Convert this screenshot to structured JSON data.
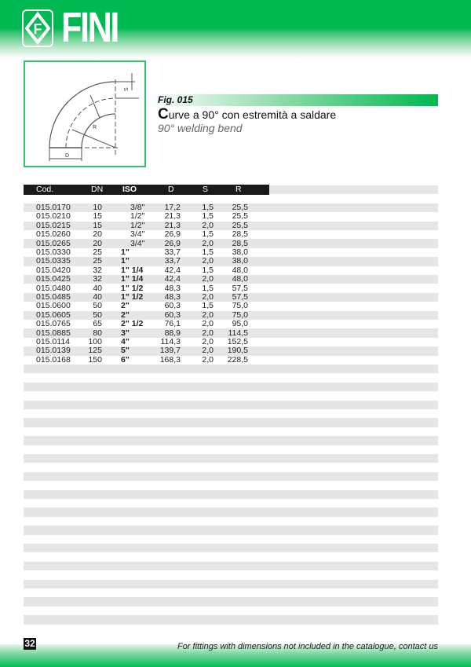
{
  "brand": {
    "name": "FINI",
    "color": "#00b850"
  },
  "figure": {
    "label": "Fig. 015",
    "title_cap": "C",
    "title_rest": "urve a 90° con estremità a saldare",
    "subtitle": "90° welding bend",
    "dim_labels": {
      "s": "S",
      "r": "R",
      "d": "D"
    }
  },
  "table": {
    "headers": [
      "Cod.",
      "DN",
      "ISO",
      "D",
      "S",
      "R"
    ],
    "rows": [
      {
        "cod": "015.0170",
        "dn": "10",
        "iso": "3/8\"",
        "frac": true,
        "d": "17,2",
        "s": "1,5",
        "r": "25,5"
      },
      {
        "cod": "015.0210",
        "dn": "15",
        "iso": "1/2\"",
        "frac": true,
        "d": "21,3",
        "s": "1,5",
        "r": "25,5"
      },
      {
        "cod": "015.0215",
        "dn": "15",
        "iso": "1/2\"",
        "frac": true,
        "d": "21,3",
        "s": "2,0",
        "r": "25,5"
      },
      {
        "cod": "015.0260",
        "dn": "20",
        "iso": "3/4\"",
        "frac": true,
        "d": "26,9",
        "s": "1,5",
        "r": "28,5"
      },
      {
        "cod": "015.0265",
        "dn": "20",
        "iso": "3/4\"",
        "frac": true,
        "d": "26,9",
        "s": "2,0",
        "r": "28,5"
      },
      {
        "cod": "015.0330",
        "dn": "25",
        "iso": "1\"",
        "frac": false,
        "d": "33,7",
        "s": "1,5",
        "r": "38,0"
      },
      {
        "cod": "015.0335",
        "dn": "25",
        "iso": "1\"",
        "frac": false,
        "d": "33,7",
        "s": "2,0",
        "r": "38,0"
      },
      {
        "cod": "015.0420",
        "dn": "32",
        "iso": "1\" 1/4",
        "frac": false,
        "d": "42,4",
        "s": "1,5",
        "r": "48,0"
      },
      {
        "cod": "015.0425",
        "dn": "32",
        "iso": "1\" 1/4",
        "frac": false,
        "d": "42,4",
        "s": "2,0",
        "r": "48,0"
      },
      {
        "cod": "015.0480",
        "dn": "40",
        "iso": "1\" 1/2",
        "frac": false,
        "d": "48,3",
        "s": "1,5",
        "r": "57,5"
      },
      {
        "cod": "015.0485",
        "dn": "40",
        "iso": "1\" 1/2",
        "frac": false,
        "d": "48,3",
        "s": "2,0",
        "r": "57,5"
      },
      {
        "cod": "015.0600",
        "dn": "50",
        "iso": "2\"",
        "frac": false,
        "d": "60,3",
        "s": "1,5",
        "r": "75,0"
      },
      {
        "cod": "015.0605",
        "dn": "50",
        "iso": "2\"",
        "frac": false,
        "d": "60,3",
        "s": "2,0",
        "r": "75,0"
      },
      {
        "cod": "015.0765",
        "dn": "65",
        "iso": "2\" 1/2",
        "frac": false,
        "d": "76,1",
        "s": "2,0",
        "r": "95,0"
      },
      {
        "cod": "015.0885",
        "dn": "80",
        "iso": "3\"",
        "frac": false,
        "d": "88,9",
        "s": "2,0",
        "r": "114,5"
      },
      {
        "cod": "015.0114",
        "dn": "100",
        "iso": "4\"",
        "frac": false,
        "d": "114,3",
        "s": "2,0",
        "r": "152,5"
      },
      {
        "cod": "015.0139",
        "dn": "125",
        "iso": "5\"",
        "frac": false,
        "d": "139,7",
        "s": "2,0",
        "r": "190,5"
      },
      {
        "cod": "015.0168",
        "dn": "150",
        "iso": "6\"",
        "frac": false,
        "d": "168,3",
        "s": "2,0",
        "r": "228,5"
      }
    ]
  },
  "footer": {
    "page": "32",
    "note": "For fittings with dimensions not included in the catalogue, contact us"
  }
}
